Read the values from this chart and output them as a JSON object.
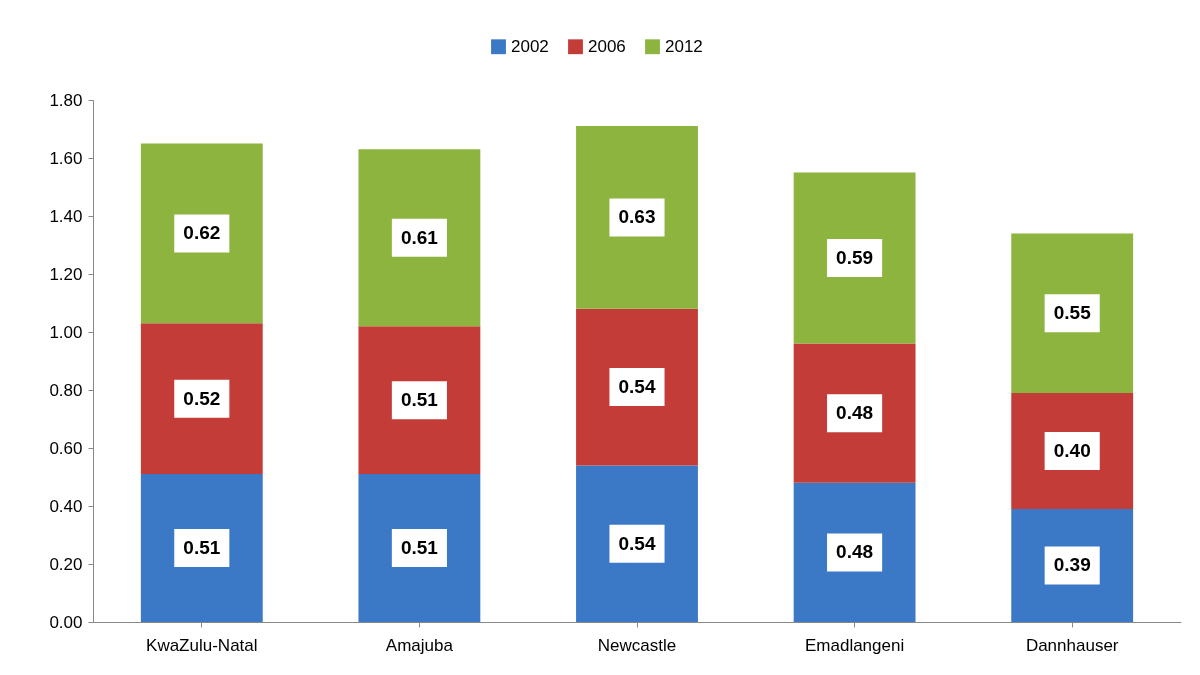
{
  "chart_data": {
    "type": "bar",
    "stacked": true,
    "legend": "top",
    "grid": false,
    "categories": [
      "KwaZulu-Natal",
      "Amajuba",
      "Newcastle",
      "Emadlangeni",
      "Dannhauser"
    ],
    "series": [
      {
        "name": "2002",
        "color": "#3b78c6",
        "values": [
          0.51,
          0.51,
          0.54,
          0.48,
          0.39
        ],
        "value_labels": [
          "0.51",
          "0.51",
          "0.54",
          "0.48",
          "0.39"
        ]
      },
      {
        "name": "2006",
        "color": "#c43c38",
        "values": [
          0.52,
          0.51,
          0.54,
          0.48,
          0.4
        ],
        "value_labels": [
          "0.52",
          "0.51",
          "0.54",
          "0.48",
          "0.40"
        ]
      },
      {
        "name": "2012",
        "color": "#8cb43e",
        "values": [
          0.62,
          0.61,
          0.63,
          0.59,
          0.55
        ],
        "value_labels": [
          "0.62",
          "0.61",
          "0.63",
          "0.59",
          "0.55"
        ]
      }
    ],
    "ylim": [
      0,
      1.8
    ],
    "yticks": [
      {
        "value": 0,
        "label": "0.00"
      },
      {
        "value": 0.2,
        "label": "0.20"
      },
      {
        "value": 0.4,
        "label": "0.40"
      },
      {
        "value": 0.6,
        "label": "0.60"
      },
      {
        "value": 0.8,
        "label": "0.80"
      },
      {
        "value": 1,
        "label": "1.00"
      },
      {
        "value": 1.2,
        "label": "1.20"
      },
      {
        "value": 1.4,
        "label": "1.40"
      },
      {
        "value": 1.6,
        "label": "1.60"
      },
      {
        "value": 1.8,
        "label": "1.80"
      }
    ]
  }
}
